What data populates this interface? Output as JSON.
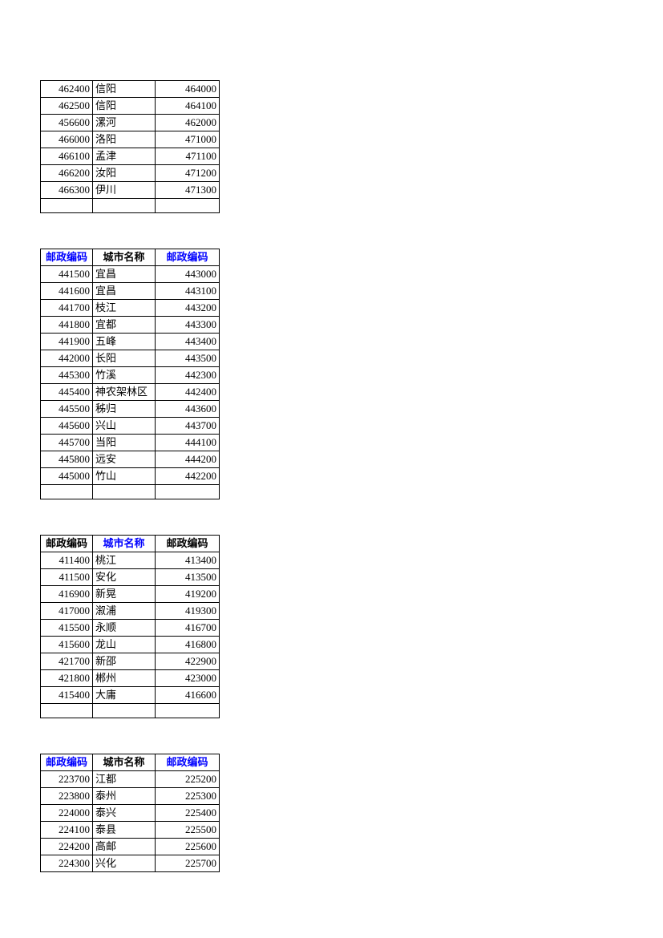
{
  "headers": {
    "postal": "邮政编码",
    "city": "城市名称"
  },
  "tables": [
    {
      "hasHeader": false,
      "header_style": [
        null,
        null,
        null
      ],
      "rows": [
        [
          "462400",
          "信阳",
          "464000"
        ],
        [
          "462500",
          "信阳",
          "464100"
        ],
        [
          "456600",
          "漯河",
          "462000"
        ],
        [
          "466000",
          "洛阳",
          "471000"
        ],
        [
          "466100",
          "孟津",
          "471100"
        ],
        [
          "466200",
          "汝阳",
          "471200"
        ],
        [
          "466300",
          "伊川",
          "471300"
        ],
        [
          "",
          "",
          ""
        ]
      ]
    },
    {
      "hasHeader": true,
      "header_style": [
        "blue",
        "black",
        "blue"
      ],
      "rows": [
        [
          "441500",
          "宜昌",
          "443000"
        ],
        [
          "441600",
          "宜昌",
          "443100"
        ],
        [
          "441700",
          "枝江",
          "443200"
        ],
        [
          "441800",
          "宜都",
          "443300"
        ],
        [
          "441900",
          "五峰",
          "443400"
        ],
        [
          "442000",
          "长阳",
          "443500"
        ],
        [
          "445300",
          "竹溪",
          "442300"
        ],
        [
          "445400",
          "神农架林区",
          "442400"
        ],
        [
          "445500",
          "秭归",
          "443600"
        ],
        [
          "445600",
          "兴山",
          "443700"
        ],
        [
          "445700",
          "当阳",
          "444100"
        ],
        [
          "445800",
          "远安",
          "444200"
        ],
        [
          "445000",
          "竹山",
          "442200"
        ],
        [
          "",
          "",
          ""
        ]
      ]
    },
    {
      "hasHeader": true,
      "header_style": [
        "black",
        "blue",
        "black"
      ],
      "rows": [
        [
          "411400",
          "桃江",
          "413400"
        ],
        [
          "411500",
          "安化",
          "413500"
        ],
        [
          "416900",
          "新晃",
          "419200"
        ],
        [
          "417000",
          "溆浦",
          "419300"
        ],
        [
          "415500",
          "永顺",
          "416700"
        ],
        [
          "415600",
          "龙山",
          "416800"
        ],
        [
          "421700",
          "新邵",
          "422900"
        ],
        [
          "421800",
          "郴州",
          "423000"
        ],
        [
          "415400",
          "大庸",
          "416600"
        ],
        [
          "",
          "",
          ""
        ]
      ]
    },
    {
      "hasHeader": true,
      "header_style": [
        "blue",
        "black",
        "blue"
      ],
      "rows": [
        [
          "223700",
          "江都",
          "225200"
        ],
        [
          "223800",
          "泰州",
          "225300"
        ],
        [
          "224000",
          "泰兴",
          "225400"
        ],
        [
          "224100",
          "泰县",
          "225500"
        ],
        [
          "224200",
          "高邮",
          "225600"
        ],
        [
          "224300",
          "兴化",
          "225700"
        ]
      ]
    }
  ]
}
